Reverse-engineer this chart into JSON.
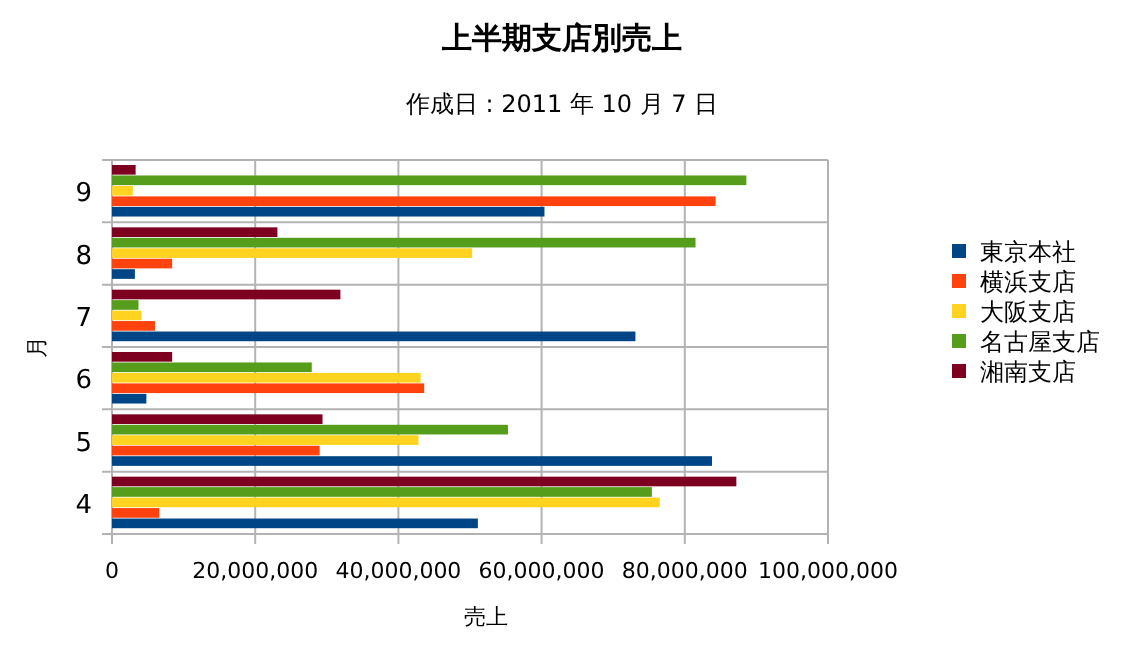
{
  "chart_data": {
    "type": "bar",
    "orientation": "horizontal",
    "title": "上半期支店別売上",
    "subtitle": "作成日 : 2011 年 10 月 7 日",
    "xlabel": "売上",
    "ylabel": "月",
    "categories": [
      "9",
      "8",
      "7",
      "6",
      "5",
      "4"
    ],
    "series": [
      {
        "name": "東京本社",
        "color": "#004586",
        "values": [
          60400000,
          3200000,
          73100000,
          4800000,
          83800000,
          51100000
        ]
      },
      {
        "name": "横浜支店",
        "color": "#ff420e",
        "values": [
          84300000,
          8400000,
          6000000,
          43600000,
          29000000,
          6600000
        ]
      },
      {
        "name": "大阪支店",
        "color": "#ffd320",
        "values": [
          2900000,
          50300000,
          4100000,
          43100000,
          42800000,
          76500000
        ]
      },
      {
        "name": "名古屋支店",
        "color": "#579d1c",
        "values": [
          88600000,
          81500000,
          3700000,
          27900000,
          55300000,
          75400000
        ]
      },
      {
        "name": "湘南支店",
        "color": "#7e0021",
        "values": [
          3300000,
          23100000,
          31900000,
          8400000,
          29400000,
          87200000
        ]
      }
    ],
    "xlim": [
      0,
      100000000
    ],
    "xticks": [
      0,
      {
        "value": 20000000,
        "label": "20,000,000"
      },
      {
        "value": 40000000,
        "label": "40,000,000"
      },
      {
        "value": 60000000,
        "label": "60,000,000"
      },
      {
        "value": 80000000,
        "label": "80,000,000"
      },
      {
        "value": 100000000,
        "label": "100,000,000"
      }
    ],
    "grid": true,
    "legend": "right"
  }
}
